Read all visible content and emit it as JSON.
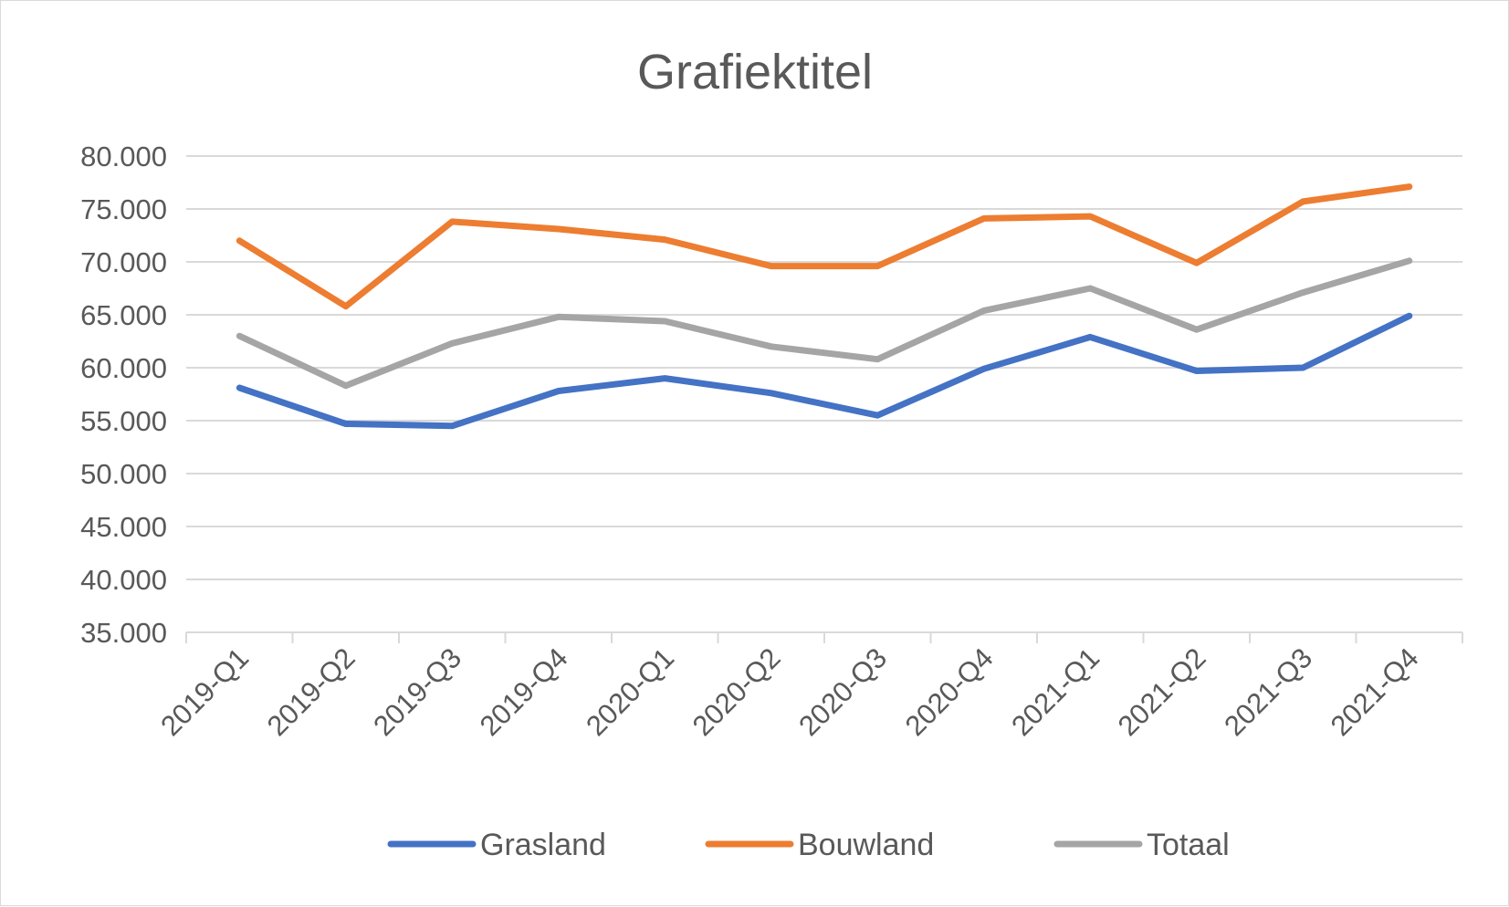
{
  "chart_data": {
    "type": "line",
    "title": "Grafiektitel",
    "xlabel": "",
    "ylabel": "",
    "categories": [
      "2019-Q1",
      "2019-Q2",
      "2019-Q3",
      "2019-Q4",
      "2020-Q1",
      "2020-Q2",
      "2020-Q3",
      "2020-Q4",
      "2021-Q1",
      "2021-Q2",
      "2021-Q3",
      "2021-Q4"
    ],
    "ylim": [
      35000,
      80000
    ],
    "y_ticks": [
      35000,
      40000,
      45000,
      50000,
      55000,
      60000,
      65000,
      70000,
      75000,
      80000
    ],
    "y_tick_labels": [
      "35.000",
      "40.000",
      "45.000",
      "50.000",
      "55.000",
      "60.000",
      "65.000",
      "70.000",
      "75.000",
      "80.000"
    ],
    "grid": "horizontal",
    "legend_position": "bottom",
    "series": [
      {
        "name": "Grasland",
        "color": "#4472c4",
        "values": [
          58100,
          54700,
          54500,
          57800,
          59000,
          57600,
          55500,
          59900,
          62900,
          59700,
          60000,
          64900
        ]
      },
      {
        "name": "Bouwland",
        "color": "#ed7d31",
        "values": [
          72000,
          65800,
          73800,
          73100,
          72100,
          69600,
          69600,
          74100,
          74300,
          69900,
          75700,
          77100
        ]
      },
      {
        "name": "Totaal",
        "color": "#a5a5a5",
        "values": [
          63000,
          58300,
          62300,
          64800,
          64400,
          62000,
          60800,
          65400,
          67500,
          63600,
          67100,
          70100
        ]
      }
    ]
  }
}
